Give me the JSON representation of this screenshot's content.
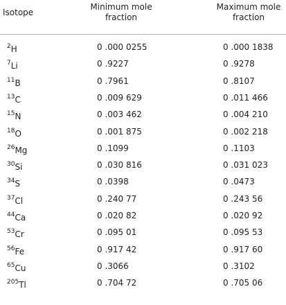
{
  "table": {
    "header": [
      "Isotope",
      "Minimum mole fraction",
      "Maximum mole fraction"
    ],
    "rows": [
      {
        "mass": "2",
        "element": "H",
        "min": "0 .000 0255",
        "max": "0 .000 1838"
      },
      {
        "mass": "7",
        "element": "Li",
        "min": "0 .9227",
        "max": "0 .9278"
      },
      {
        "mass": "11",
        "element": "B",
        "min": "0 .7961",
        "max": "0 .8107"
      },
      {
        "mass": "13",
        "element": "C",
        "min": "0 .009 629",
        "max": "0 .011 466"
      },
      {
        "mass": "15",
        "element": "N",
        "min": "0 .003 462",
        "max": "0 .004 210"
      },
      {
        "mass": "18",
        "element": "O",
        "min": "0 .001 875",
        "max": "0 .002 218"
      },
      {
        "mass": "26",
        "element": "Mg",
        "min": "0 .1099",
        "max": "0 .1103"
      },
      {
        "mass": "30",
        "element": "Si",
        "min": "0 .030 816",
        "max": "0 .031 023"
      },
      {
        "mass": "34",
        "element": "S",
        "min": "0 .0398",
        "max": "0 .0473"
      },
      {
        "mass": "37",
        "element": "Cl",
        "min": "0 .240 77",
        "max": "0 .243 56"
      },
      {
        "mass": "44",
        "element": "Ca",
        "min": "0 .020 82",
        "max": "0 .020 92"
      },
      {
        "mass": "53",
        "element": "Cr",
        "min": "0 .095 01",
        "max": "0 .095 53"
      },
      {
        "mass": "56",
        "element": "Fe",
        "min": "0 .917 42",
        "max": "0 .917 60"
      },
      {
        "mass": "65",
        "element": "Cu",
        "min": "0 .3066",
        "max": "0 .3102"
      },
      {
        "mass": "205",
        "element": "Tl",
        "min": "0 .704 72",
        "max": "0 .705 06"
      }
    ]
  }
}
